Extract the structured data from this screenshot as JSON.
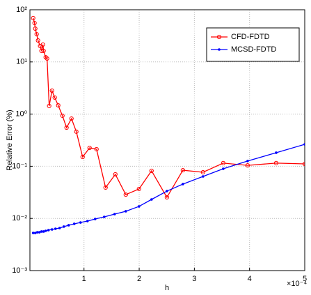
{
  "chart_data": {
    "type": "line",
    "xlabel": "h",
    "ylabel": "Relative Error (%)",
    "x_multiplier": "×10⁻⁴",
    "ylog": true,
    "grid": true,
    "legend": "upper right",
    "xlim": [
      0.02,
      5
    ],
    "xticks": [
      1,
      2,
      3,
      4,
      5
    ],
    "ylim": [
      0.001,
      100
    ],
    "yticks": [
      {
        "value": 0.001,
        "label": "10⁻³"
      },
      {
        "value": 0.01,
        "label": "10⁻²"
      },
      {
        "value": 0.1,
        "label": "10⁻¹"
      },
      {
        "value": 1,
        "label": "10⁰"
      },
      {
        "value": 10,
        "label": "10¹"
      },
      {
        "value": 100,
        "label": "10²"
      }
    ],
    "series": [
      {
        "name": "CFD-FDTD",
        "color": "#ff0000",
        "marker": "o",
        "x": [
          0.079,
          0.104,
          0.117,
          0.142,
          0.167,
          0.205,
          0.23,
          0.256,
          0.268,
          0.306,
          0.331,
          0.369,
          0.42,
          0.47,
          0.533,
          0.609,
          0.684,
          0.773,
          0.861,
          0.975,
          1.101,
          1.227,
          1.391,
          1.568,
          1.757,
          1.997,
          2.224,
          2.502,
          2.792,
          3.157,
          3.523,
          3.965,
          4.482,
          5.0
        ],
        "values": [
          69.2,
          55.7,
          43.5,
          34.0,
          25.8,
          20.2,
          16.3,
          21.5,
          16.3,
          12.3,
          11.6,
          1.43,
          2.81,
          2.07,
          1.47,
          0.93,
          0.55,
          0.82,
          0.46,
          0.151,
          0.225,
          0.212,
          0.039,
          0.07,
          0.0286,
          0.0367,
          0.0817,
          0.0254,
          0.084,
          0.0767,
          0.115,
          0.104,
          0.115,
          0.111
        ]
      },
      {
        "name": "MCSD-FDTD",
        "color": "#0000ff",
        "marker": ".",
        "x": [
          0.079,
          0.117,
          0.155,
          0.192,
          0.23,
          0.268,
          0.306,
          0.356,
          0.42,
          0.483,
          0.558,
          0.634,
          0.722,
          0.823,
          0.937,
          1.063,
          1.202,
          1.366,
          1.555,
          1.757,
          1.997,
          2.224,
          2.502,
          2.792,
          3.157,
          3.523,
          3.965,
          4.482,
          5.0
        ],
        "values": [
          0.00527,
          0.00527,
          0.00543,
          0.00543,
          0.00561,
          0.00561,
          0.00578,
          0.00596,
          0.00615,
          0.00634,
          0.00654,
          0.00696,
          0.0074,
          0.00787,
          0.00836,
          0.00889,
          0.00975,
          0.0107,
          0.0121,
          0.0137,
          0.017,
          0.0231,
          0.0334,
          0.0455,
          0.0638,
          0.0895,
          0.126,
          0.182,
          0.263
        ]
      }
    ]
  }
}
